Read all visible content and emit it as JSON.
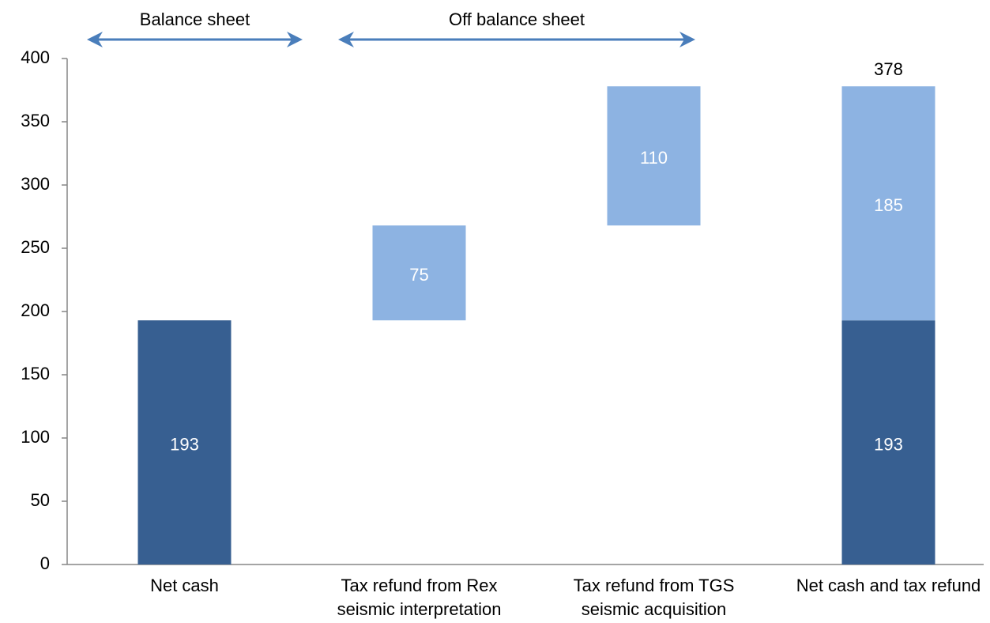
{
  "chart_data": {
    "type": "waterfall",
    "categories": [
      "Net cash",
      "Tax refund from Rex seismic interpretation",
      "Tax refund from TGS seismic acquisition",
      "Net cash and tax refund"
    ],
    "series": [
      {
        "color": "#375f91",
        "values": [
          193,
          null,
          null,
          193
        ]
      },
      {
        "color": "#8db3e2",
        "values": [
          null,
          75,
          110,
          185
        ]
      }
    ],
    "totals": [
      null,
      null,
      null,
      378
    ],
    "ylim": [
      0,
      400
    ],
    "yticks": [
      0,
      50,
      100,
      150,
      200,
      250,
      300,
      350,
      400
    ],
    "annotations": [
      {
        "text": "Balance sheet",
        "color": "#4a7ebb"
      },
      {
        "text": "Off balance sheet",
        "color": "#4a7ebb"
      }
    ]
  }
}
